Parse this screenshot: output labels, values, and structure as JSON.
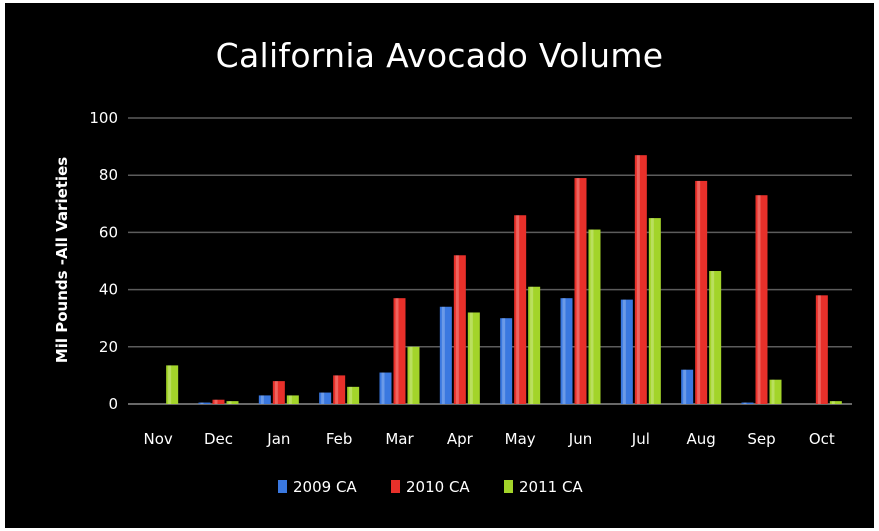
{
  "chart_data": {
    "type": "bar",
    "title": "California Avocado Volume",
    "ylabel": "Mil Pounds -All Varieties",
    "xlabel": "",
    "ylim": [
      0,
      100
    ],
    "yticks": [
      0,
      20,
      40,
      60,
      80,
      100
    ],
    "grid": true,
    "legend_position": "bottom",
    "categories": [
      "Nov",
      "Dec",
      "Jan",
      "Feb",
      "Mar",
      "Apr",
      "May",
      "Jun",
      "Jul",
      "Aug",
      "Sep",
      "Oct"
    ],
    "series": [
      {
        "name": "2009 CA",
        "color": "#3a78e0",
        "values": [
          0,
          0.5,
          3,
          4,
          11,
          34,
          30,
          37,
          36.5,
          12,
          0.5,
          0
        ]
      },
      {
        "name": "2010 CA",
        "color": "#e8302a",
        "values": [
          0,
          1.5,
          8,
          10,
          37,
          52,
          66,
          79,
          87,
          78,
          73,
          38
        ]
      },
      {
        "name": "2011 CA",
        "color": "#a3d42a",
        "values": [
          13.5,
          1,
          3,
          6,
          20,
          32,
          41,
          61,
          65,
          46.5,
          8.5,
          1
        ]
      }
    ]
  }
}
